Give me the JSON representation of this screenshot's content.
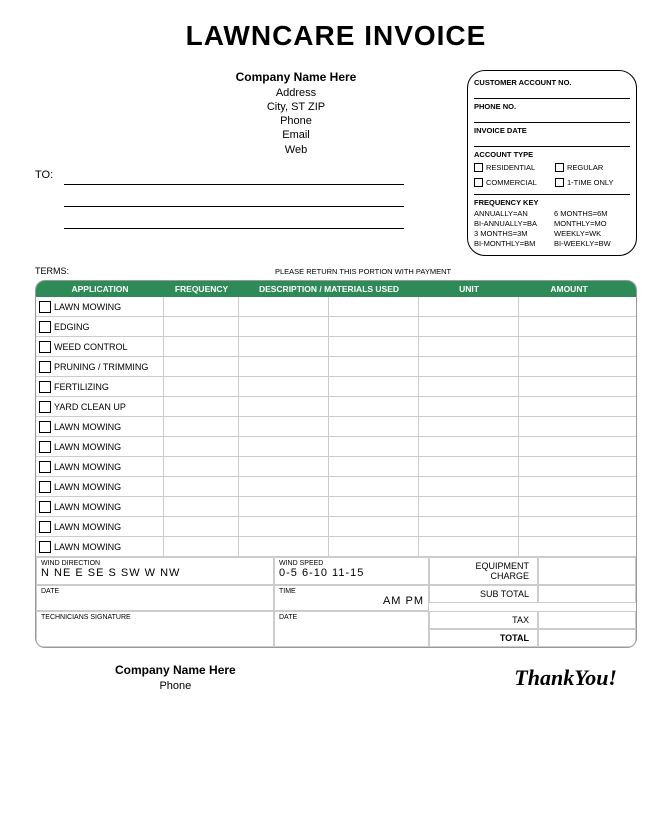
{
  "title": "LAWNCARE INVOICE",
  "company": {
    "name": "Company Name Here",
    "address": "Address",
    "citystzip": "City, ST ZIP",
    "phone": "Phone",
    "email": "Email",
    "web": "Web"
  },
  "to_label": "TO:",
  "account_box": {
    "customer_account": "CUSTOMER ACCOUNT NO.",
    "phone": "PHONE NO.",
    "invoice_date": "INVOICE DATE",
    "account_type": "ACCOUNT TYPE",
    "types": [
      "RESIDENTIAL",
      "REGULAR",
      "COMMERCIAL",
      "1-TIME ONLY"
    ],
    "freq_key_label": "FREQUENCY KEY",
    "freq_keys": [
      "ANNUALLY=AN",
      "6 MONTHS=6M",
      "BI-ANNUALLY=BA",
      "MONTHLY=MO",
      "3 MONTHS=3M",
      "WEEKLY=WK",
      "BI-MONTHLY=BM",
      "BI-WEEKLY=BW"
    ]
  },
  "terms_label": "TERMS:",
  "return_text": "PLEASE RETURN THIS PORTION WITH PAYMENT",
  "table": {
    "headers": {
      "c1": "APPLICATION",
      "c2": "FREQUENCY",
      "c3": "DESCRIPTION / MATERIALS USED",
      "c4": "UNIT",
      "c5": "AMOUNT"
    },
    "rows": [
      "LAWN MOWING",
      "EDGING",
      "WEED CONTROL",
      "PRUNING / TRIMMING",
      "FERTILIZING",
      "YARD CLEAN UP",
      "LAWN MOWING",
      "LAWN MOWING",
      "LAWN MOWING",
      "LAWN MOWING",
      "LAWN MOWING",
      "LAWN MOWING",
      "LAWN MOWING"
    ]
  },
  "bottom": {
    "wind_dir_label": "WIND DIRECTION",
    "wind_dir": "N  NE  E  SE  S  SW  W  NW",
    "wind_speed_label": "WIND SPEED",
    "wind_speed": "0-5  6-10  11-15",
    "date_label": "DATE",
    "time_label": "TIME",
    "ampm": "AM  PM",
    "tech_sig": "TECHNICIANS SIGNATURE",
    "equipment": "EQUIPMENT CHARGE",
    "subtotal": "SUB TOTAL",
    "tax": "TAX",
    "total": "TOTAL"
  },
  "footer": {
    "company": "Company Name Here",
    "phone": "Phone",
    "thanks": "ThankYou!"
  },
  "colors": {
    "header_bg": "#2e8b57",
    "border": "#cccccc"
  }
}
